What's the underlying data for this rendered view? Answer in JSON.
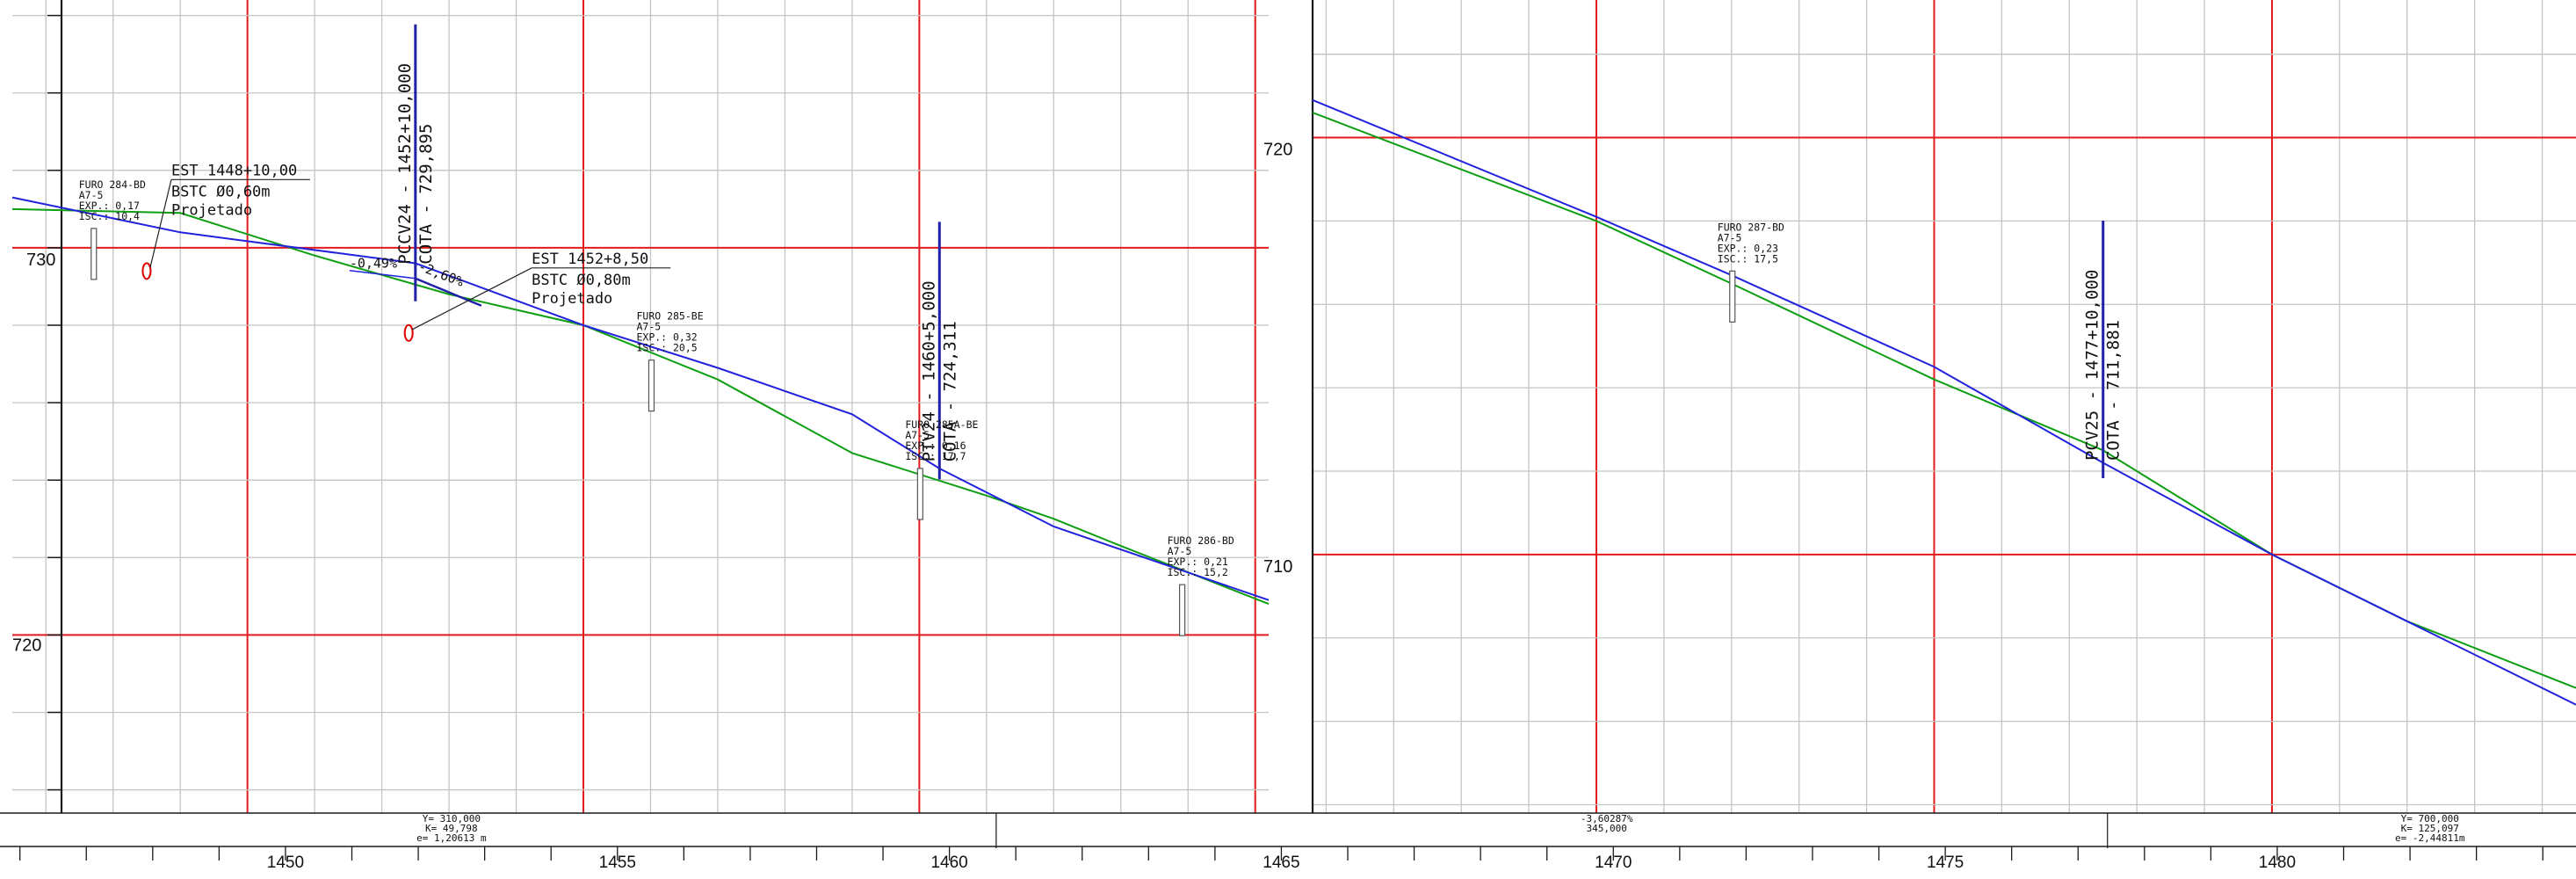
{
  "colors": {
    "minor_grid": "#c4c4c4",
    "major_grid": "#e31b1b",
    "frame": "#1a1a1a",
    "terrain": "#0e9e12",
    "grade": "#2222dd",
    "vertical_marker": "#2020a8",
    "culvert": "#dd0000",
    "text": "#111111"
  },
  "left_panel": {
    "station_range": [
      1446.5,
      1465.2
    ],
    "elevation_range": [
      715.4,
      736.4
    ],
    "elevation_labels": [
      {
        "value": 730,
        "text": "730"
      },
      {
        "value": 720,
        "text": "720"
      }
    ]
  },
  "right_panel": {
    "station_range": [
      1465.8,
      1484.5
    ],
    "elevation_range": [
      703.8,
      723.3
    ],
    "elevation_labels": [
      {
        "value": 720,
        "text": "720"
      },
      {
        "value": 710,
        "text": "710"
      }
    ]
  },
  "station_axis": {
    "range": [
      1445.7,
      1484.5
    ],
    "labels": [
      {
        "station": 1450,
        "text": "1450"
      },
      {
        "station": 1455,
        "text": "1455"
      },
      {
        "station": 1460,
        "text": "1460"
      },
      {
        "station": 1465,
        "text": "1465"
      },
      {
        "station": 1470,
        "text": "1470"
      },
      {
        "station": 1475,
        "text": "1475"
      },
      {
        "station": 1480,
        "text": "1480"
      }
    ]
  },
  "terrain_left": [
    {
      "station": 1446.5,
      "elevation": 731.0
    },
    {
      "station": 1449.0,
      "elevation": 730.9
    },
    {
      "station": 1451.0,
      "elevation": 729.8
    },
    {
      "station": 1453.0,
      "elevation": 728.8
    },
    {
      "station": 1455.0,
      "elevation": 728.0
    },
    {
      "station": 1457.0,
      "elevation": 726.6
    },
    {
      "station": 1459.0,
      "elevation": 724.7
    },
    {
      "station": 1461.0,
      "elevation": 723.6
    },
    {
      "station": 1462.0,
      "elevation": 723.0
    },
    {
      "station": 1463.0,
      "elevation": 722.3
    },
    {
      "station": 1465.2,
      "elevation": 720.8
    }
  ],
  "grade_left": [
    {
      "station": 1446.5,
      "elevation": 731.3
    },
    {
      "station": 1449.0,
      "elevation": 730.4
    },
    {
      "station": 1452.5,
      "elevation": 729.6
    },
    {
      "station": 1455.0,
      "elevation": 728.0
    },
    {
      "station": 1457.0,
      "elevation": 726.9
    },
    {
      "station": 1459.0,
      "elevation": 725.7
    },
    {
      "station": 1460.3,
      "elevation": 724.3
    },
    {
      "station": 1462.0,
      "elevation": 722.8
    },
    {
      "station": 1465.2,
      "elevation": 720.9
    }
  ],
  "terrain_right": [
    {
      "station": 1465.8,
      "elevation": 720.6
    },
    {
      "station": 1470.0,
      "elevation": 718.0
    },
    {
      "station": 1472.0,
      "elevation": 716.5
    },
    {
      "station": 1475.0,
      "elevation": 714.2
    },
    {
      "station": 1477.5,
      "elevation": 712.5
    },
    {
      "station": 1480.0,
      "elevation": 710.0
    },
    {
      "state": "",
      "station": 1482.0,
      "elevation": 708.4
    },
    {
      "station": 1484.5,
      "elevation": 706.8
    }
  ],
  "grade_right": [
    {
      "station": 1465.8,
      "elevation": 720.9
    },
    {
      "station": 1470.0,
      "elevation": 718.1
    },
    {
      "station": 1472.0,
      "elevation": 716.7
    },
    {
      "station": 1475.0,
      "elevation": 714.5
    },
    {
      "station": 1477.5,
      "elevation": 712.2
    },
    {
      "station": 1480.0,
      "elevation": 710.0
    },
    {
      "station": 1482.0,
      "elevation": 708.4
    },
    {
      "station": 1484.5,
      "elevation": 706.4
    }
  ],
  "grade_labels": {
    "left_grade": "-0,49%",
    "right_grade": "-2,60%"
  },
  "vertical_points": [
    {
      "panel": "left",
      "station": 1452.5,
      "elevation": 729.3,
      "line1": "PCCV24 - 1452+10,000",
      "line2": "COTA - 729,895"
    },
    {
      "panel": "left",
      "station": 1460.3,
      "elevation": 724.2,
      "line1": "PTV24 - 1460+5,000",
      "line2": "COTA - 724,311"
    },
    {
      "panel": "right",
      "station": 1477.5,
      "elevation": 712.0,
      "line1": "PCV25 - 1477+10,000",
      "line2": "COTA - 711,881"
    }
  ],
  "boreholes": [
    {
      "panel": "left",
      "station": 1447.7,
      "elevation": 730.5,
      "lines": [
        "FURO 284-BD",
        "A7-5",
        "EXP.: 0,17",
        "ISC.: 10,4"
      ]
    },
    {
      "panel": "left",
      "station": 1456.0,
      "elevation": 727.1,
      "lines": [
        "FURO 285-BE",
        "A7-5",
        "EXP.: 0,32",
        "ISC.: 20,5"
      ]
    },
    {
      "panel": "left",
      "station": 1460.0,
      "elevation": 724.3,
      "lines": [
        "FURO 285A-BE",
        "A7-5",
        "EXP.: 0,16",
        "ISC.: 17,7"
      ]
    },
    {
      "panel": "left",
      "station": 1463.9,
      "elevation": 721.3,
      "lines": [
        "FURO 286-BD",
        "A7-5",
        "EXP.: 0,21",
        "ISC.: 15,2"
      ]
    },
    {
      "panel": "right",
      "station": 1472.0,
      "elevation": 716.8,
      "lines": [
        "FURO 287-BD",
        "A7-5",
        "EXP.: 0,23",
        "ISC.: 17,5"
      ]
    }
  ],
  "culverts": [
    {
      "station": 1448.5,
      "elevation": 729.4,
      "lines": [
        "EST 1448+10,00",
        "BSTC Ø0,60m",
        "Projetado"
      ]
    },
    {
      "station": 1452.4,
      "elevation": 727.8,
      "lines": [
        "EST 1452+8,50",
        "BSTC Ø0,80m",
        "Projetado"
      ]
    }
  ],
  "curve_params": [
    {
      "station": 1452.5,
      "lines": [
        "Y= 310,000",
        "K= 49,798",
        "e= 1,20613 m"
      ]
    },
    {
      "station": 1469.9,
      "lines": [
        "-3,60287%",
        "345,000"
      ]
    },
    {
      "station": 1482.3,
      "lines": [
        "Y= 700,000",
        "K= 125,097",
        "e= -2,44811m"
      ]
    }
  ]
}
